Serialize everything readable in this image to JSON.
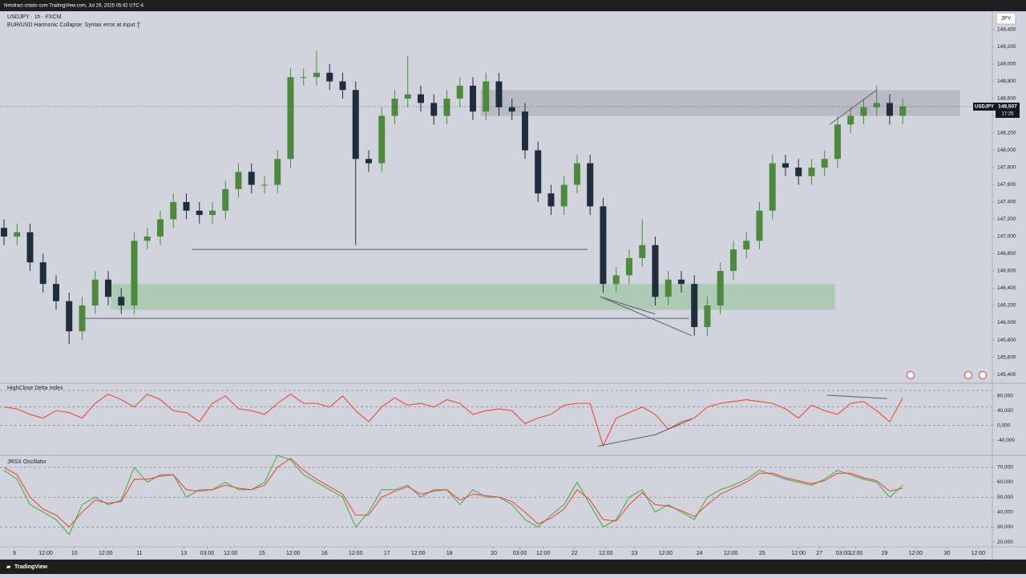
{
  "header": {
    "credit": "Netolraci criado com TradingView.com, Jul 29, 2025 05:42 UTC-4"
  },
  "footer": {
    "brand": "TradingView"
  },
  "chart_data": [
    {
      "type": "candlestick",
      "title": "USDJPY · 1h · FXCM",
      "subtitle": "EUR/USD Harmonic Collapse: Syntax error at input '['",
      "currency": "JPY",
      "up_color": "#4e8a3e",
      "down_color": "#1f2d3d",
      "x": [
        0,
        5,
        10,
        15,
        20,
        25,
        30,
        35,
        40,
        45,
        50,
        55,
        60,
        65,
        70,
        75,
        80,
        85,
        90,
        95,
        100,
        105,
        110,
        115,
        120,
        125,
        130,
        135,
        140,
        145,
        150,
        155,
        160,
        165,
        170,
        175,
        180,
        185,
        190,
        195,
        200,
        205,
        210,
        215,
        220,
        225,
        230,
        235,
        240,
        245,
        250,
        255,
        260,
        265,
        270,
        275,
        280,
        285,
        290,
        295,
        300,
        305,
        310,
        315,
        320,
        325,
        330,
        335,
        340,
        345
      ],
      "open": [
        147.1,
        147.0,
        147.05,
        146.7,
        146.45,
        146.25,
        145.9,
        146.2,
        146.5,
        146.3,
        146.2,
        146.95,
        147.0,
        147.2,
        147.4,
        147.3,
        147.25,
        147.3,
        147.55,
        147.75,
        147.6,
        147.6,
        147.9,
        148.85,
        148.85,
        148.9,
        148.8,
        148.7,
        147.9,
        147.85,
        148.4,
        148.6,
        148.65,
        148.55,
        148.4,
        148.6,
        148.75,
        148.45,
        148.8,
        148.5,
        148.45,
        148.0,
        147.5,
        147.35,
        147.6,
        147.85,
        147.35,
        146.45,
        146.55,
        146.75,
        146.9,
        146.3,
        146.5,
        146.45,
        145.95,
        146.2,
        146.6,
        146.85,
        146.95,
        147.3,
        147.85,
        147.8,
        147.7,
        147.8,
        147.9,
        148.3,
        148.4,
        148.5,
        148.55,
        148.4
      ],
      "high": [
        147.2,
        147.15,
        147.15,
        146.8,
        146.55,
        146.35,
        146.3,
        146.6,
        146.6,
        146.4,
        147.05,
        147.1,
        147.3,
        147.5,
        147.5,
        147.4,
        147.4,
        147.65,
        147.85,
        147.85,
        147.7,
        148.0,
        148.95,
        148.95,
        149.15,
        149.0,
        148.9,
        148.8,
        148.0,
        148.5,
        148.7,
        149.1,
        148.75,
        148.65,
        148.7,
        148.85,
        148.85,
        148.9,
        148.9,
        148.6,
        148.55,
        148.1,
        147.6,
        147.7,
        147.95,
        147.95,
        147.45,
        146.65,
        146.85,
        147.2,
        147.0,
        146.6,
        146.6,
        146.55,
        146.3,
        146.7,
        146.95,
        147.05,
        147.4,
        147.95,
        147.95,
        147.9,
        147.9,
        148.0,
        148.4,
        148.5,
        148.6,
        148.75,
        148.65,
        148.6
      ],
      "low": [
        146.9,
        146.9,
        146.6,
        146.35,
        146.15,
        145.75,
        145.8,
        146.1,
        146.2,
        146.1,
        146.1,
        146.85,
        146.9,
        147.1,
        147.2,
        147.15,
        147.15,
        147.2,
        147.45,
        147.5,
        147.5,
        147.5,
        147.8,
        148.75,
        148.75,
        148.7,
        148.6,
        146.9,
        147.75,
        147.75,
        148.3,
        148.5,
        148.45,
        148.3,
        148.3,
        148.5,
        148.35,
        148.35,
        148.4,
        148.35,
        147.9,
        147.4,
        147.25,
        147.25,
        147.5,
        147.25,
        146.35,
        146.35,
        146.45,
        146.65,
        146.2,
        146.2,
        146.35,
        145.85,
        145.85,
        146.1,
        146.5,
        146.75,
        146.85,
        147.2,
        147.7,
        147.6,
        147.6,
        147.7,
        147.8,
        148.2,
        148.3,
        148.4,
        148.3,
        148.3
      ],
      "close": [
        147.0,
        147.05,
        146.7,
        146.45,
        146.25,
        145.9,
        146.2,
        146.5,
        146.3,
        146.2,
        146.95,
        147.0,
        147.2,
        147.4,
        147.3,
        147.25,
        147.3,
        147.55,
        147.75,
        147.6,
        147.6,
        147.9,
        148.85,
        148.85,
        148.9,
        148.8,
        148.7,
        147.9,
        147.85,
        148.4,
        148.6,
        148.65,
        148.55,
        148.4,
        148.6,
        148.75,
        148.45,
        148.8,
        148.5,
        148.45,
        148.0,
        147.5,
        147.35,
        147.6,
        147.85,
        147.35,
        146.45,
        146.55,
        146.75,
        146.9,
        146.3,
        146.5,
        146.45,
        145.95,
        146.2,
        146.6,
        146.85,
        146.95,
        147.3,
        147.85,
        147.8,
        147.7,
        147.8,
        147.9,
        148.3,
        148.4,
        148.5,
        148.55,
        148.4,
        148.51
      ],
      "xlim": [
        0,
        379.4
      ],
      "xticks": [
        {
          "value": 4,
          "label": "9"
        },
        {
          "value": 16,
          "label": "12:00"
        },
        {
          "value": 27,
          "label": "10"
        },
        {
          "value": 39,
          "label": "12:00"
        },
        {
          "value": 52,
          "label": "11"
        },
        {
          "value": 69,
          "label": "13"
        },
        {
          "value": 78,
          "label": "03:00"
        },
        {
          "value": 87,
          "label": "12:00"
        },
        {
          "value": 99,
          "label": "15"
        },
        {
          "value": 111,
          "label": "12:00"
        },
        {
          "value": 123,
          "label": "16"
        },
        {
          "value": 135,
          "label": "12:00"
        },
        {
          "value": 147,
          "label": "17"
        },
        {
          "value": 159,
          "label": "12:00"
        },
        {
          "value": 171,
          "label": "18"
        },
        {
          "value": 188,
          "label": "20"
        },
        {
          "value": 198,
          "label": "03:00"
        },
        {
          "value": 207,
          "label": "12:00"
        },
        {
          "value": 219,
          "label": "22"
        },
        {
          "value": 231,
          "label": "12:00"
        },
        {
          "value": 242,
          "label": "23"
        },
        {
          "value": 254,
          "label": "12:00"
        },
        {
          "value": 267,
          "label": "24"
        },
        {
          "value": 279,
          "label": "12:00"
        },
        {
          "value": 291,
          "label": "25"
        },
        {
          "value": 305,
          "label": "12:00"
        },
        {
          "value": 313,
          "label": "27"
        },
        {
          "value": 322,
          "label": "03:00"
        },
        {
          "value": 327,
          "label": "12:00"
        },
        {
          "value": 338,
          "label": "29"
        },
        {
          "value": 350,
          "label": "12:00"
        },
        {
          "value": 362,
          "label": "30"
        },
        {
          "value": 374,
          "label": "12:00"
        }
      ],
      "ylim": [
        145.298,
        149.614
      ],
      "yticks": [
        {
          "value": 149.4,
          "label": "149,400"
        },
        {
          "value": 149.2,
          "label": "149,200"
        },
        {
          "value": 149.0,
          "label": "149,000"
        },
        {
          "value": 148.8,
          "label": "148,800"
        },
        {
          "value": 148.6,
          "label": "148,600"
        },
        {
          "value": 148.4,
          "label": "148,400"
        },
        {
          "value": 148.2,
          "label": "148,200"
        },
        {
          "value": 148.0,
          "label": "148,000"
        },
        {
          "value": 147.8,
          "label": "147,800"
        },
        {
          "value": 147.6,
          "label": "147,600"
        },
        {
          "value": 147.4,
          "label": "147,400"
        },
        {
          "value": 147.2,
          "label": "147,200"
        },
        {
          "value": 147.0,
          "label": "147,000"
        },
        {
          "value": 146.8,
          "label": "146,800"
        },
        {
          "value": 146.6,
          "label": "146,600"
        },
        {
          "value": 146.4,
          "label": "146,400"
        },
        {
          "value": 146.2,
          "label": "146,200"
        },
        {
          "value": 146.0,
          "label": "146,000"
        },
        {
          "value": 145.8,
          "label": "145,800"
        },
        {
          "value": 145.6,
          "label": "145,600"
        },
        {
          "value": 145.4,
          "label": "145,400"
        }
      ],
      "last_price": {
        "symbol": "USDJPY",
        "value": 148.507,
        "label": "148,507",
        "countdown": "17:25"
      },
      "zones": [
        {
          "x": [
            183,
            367
          ],
          "y": [
            148.4,
            148.7
          ],
          "color": "rgba(120,123,134,0.28)"
        },
        {
          "x": [
            41,
            319
          ],
          "y": [
            146.15,
            146.45
          ],
          "color": "rgba(76,175,80,0.28)"
        }
      ],
      "lines": [
        {
          "x": [
            31,
            263
          ],
          "y": [
            146.05,
            146.05
          ]
        },
        {
          "x": [
            72,
            224
          ],
          "y": [
            146.85,
            146.85
          ]
        },
        {
          "x": [
            229,
            250
          ],
          "y": [
            146.3,
            146.1
          ]
        },
        {
          "x": [
            229,
            264
          ],
          "y": [
            146.3,
            145.85
          ]
        },
        {
          "x": [
            317,
            335
          ],
          "y": [
            148.3,
            148.7
          ]
        }
      ]
    },
    {
      "type": "line",
      "title": "HighClose Delta Index",
      "x": [
        0,
        5,
        10,
        15,
        20,
        25,
        30,
        35,
        40,
        45,
        50,
        55,
        60,
        65,
        70,
        75,
        80,
        85,
        90,
        95,
        100,
        105,
        110,
        115,
        120,
        125,
        130,
        135,
        140,
        145,
        150,
        155,
        160,
        165,
        170,
        175,
        180,
        185,
        190,
        195,
        200,
        205,
        210,
        215,
        220,
        225,
        230,
        235,
        240,
        245,
        250,
        255,
        260,
        265,
        270,
        275,
        280,
        285,
        290,
        295,
        300,
        305,
        310,
        315,
        320,
        325,
        330,
        335,
        340,
        345
      ],
      "series": [
        {
          "color": "#ef4a3f",
          "values": [
            50,
            45,
            30,
            20,
            40,
            35,
            20,
            60,
            85,
            70,
            50,
            85,
            70,
            40,
            35,
            10,
            60,
            80,
            45,
            40,
            30,
            60,
            85,
            60,
            60,
            50,
            80,
            40,
            10,
            50,
            75,
            55,
            60,
            50,
            70,
            60,
            30,
            40,
            45,
            40,
            5,
            20,
            30,
            55,
            60,
            60,
            -55,
            20,
            35,
            50,
            30,
            -10,
            10,
            20,
            50,
            60,
            65,
            70,
            65,
            60,
            45,
            20,
            55,
            40,
            30,
            60,
            65,
            40,
            10,
            75
          ]
        }
      ],
      "ylim": [
        -81,
        114.6
      ],
      "yticks": [
        {
          "value": 80,
          "label": "80,000"
        },
        {
          "value": 40,
          "label": "40,000"
        },
        {
          "value": 0,
          "label": "0,000"
        },
        {
          "value": -40,
          "label": "-40,000"
        }
      ],
      "levels": [
        95,
        50,
        0
      ],
      "lines": [
        {
          "x": [
            228,
            250
          ],
          "y": [
            -56,
            -25
          ]
        },
        {
          "x": [
            250,
            264
          ],
          "y": [
            -25,
            17
          ]
        },
        {
          "x": [
            316,
            339
          ],
          "y": [
            82,
            73
          ]
        }
      ]
    },
    {
      "type": "line",
      "title": "JRSX Oscillator",
      "x": [
        0,
        5,
        10,
        15,
        20,
        25,
        30,
        35,
        40,
        45,
        50,
        55,
        60,
        65,
        70,
        75,
        80,
        85,
        90,
        95,
        100,
        105,
        110,
        115,
        120,
        125,
        130,
        135,
        140,
        145,
        150,
        155,
        160,
        165,
        170,
        175,
        180,
        185,
        190,
        195,
        200,
        205,
        210,
        215,
        220,
        225,
        230,
        235,
        240,
        245,
        250,
        255,
        260,
        265,
        270,
        275,
        280,
        285,
        290,
        295,
        300,
        305,
        310,
        315,
        320,
        325,
        330,
        335,
        340,
        345
      ],
      "series": [
        {
          "color": "#4caf50",
          "values": [
            68,
            62,
            45,
            40,
            35,
            25,
            45,
            50,
            45,
            48,
            70,
            60,
            65,
            65,
            50,
            55,
            55,
            60,
            55,
            55,
            60,
            78,
            75,
            65,
            60,
            55,
            50,
            30,
            40,
            55,
            55,
            58,
            50,
            55,
            55,
            45,
            55,
            50,
            50,
            45,
            35,
            30,
            38,
            45,
            60,
            45,
            30,
            35,
            50,
            55,
            40,
            45,
            40,
            35,
            50,
            55,
            58,
            62,
            68,
            65,
            62,
            60,
            58,
            62,
            68,
            65,
            62,
            60,
            50,
            58
          ]
        },
        {
          "color": "#ef4a3f",
          "values": [
            70,
            65,
            50,
            42,
            38,
            30,
            40,
            48,
            46,
            47,
            62,
            62,
            64,
            65,
            55,
            54,
            55,
            58,
            56,
            55,
            58,
            70,
            76,
            68,
            62,
            57,
            52,
            38,
            38,
            50,
            54,
            57,
            52,
            54,
            55,
            48,
            52,
            51,
            50,
            47,
            40,
            32,
            36,
            42,
            55,
            48,
            35,
            34,
            45,
            53,
            45,
            44,
            41,
            37,
            45,
            52,
            56,
            60,
            66,
            66,
            63,
            61,
            59,
            61,
            66,
            66,
            63,
            61,
            54,
            56
          ]
        }
      ],
      "ylim": [
        16.8,
        78
      ],
      "yticks": [
        {
          "value": 70,
          "label": "70,000"
        },
        {
          "value": 60,
          "label": "60,000"
        },
        {
          "value": 50,
          "label": "50,000"
        },
        {
          "value": 40,
          "label": "40,000"
        },
        {
          "value": 30,
          "label": "30,000"
        },
        {
          "value": 20,
          "label": "20,000"
        }
      ],
      "levels": [
        70,
        50,
        30
      ]
    }
  ]
}
